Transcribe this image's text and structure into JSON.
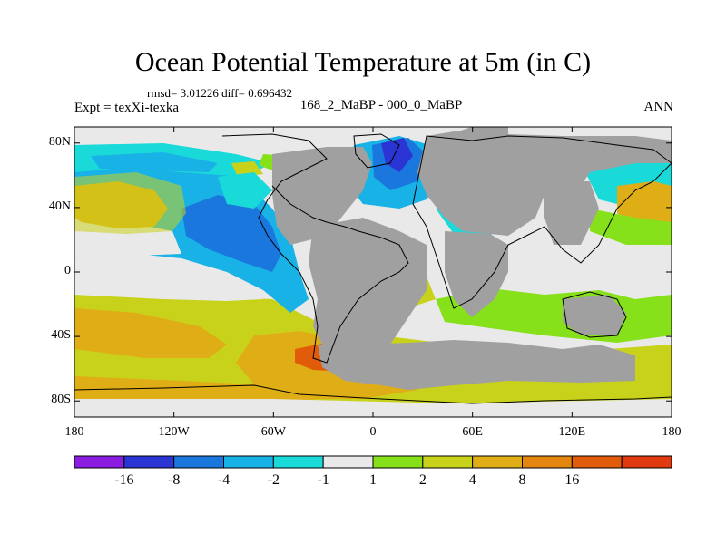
{
  "title": "Ocean Potential Temperature at 5m (in C)",
  "stats": "rmsd= 3.01226 diff= 0.696432",
  "experiment": "Expt = texXi-texka",
  "comparison": "168_2_MaBP - 000_0_MaBP",
  "season": "ANN",
  "lat_ticks": [
    {
      "value": 80,
      "label": "80N"
    },
    {
      "value": 40,
      "label": "40N"
    },
    {
      "value": 0,
      "label": "0"
    },
    {
      "value": -40,
      "label": "40S"
    },
    {
      "value": -80,
      "label": "80S"
    }
  ],
  "lon_ticks": [
    {
      "value": -180,
      "label": "180"
    },
    {
      "value": -120,
      "label": "120W"
    },
    {
      "value": -60,
      "label": "60W"
    },
    {
      "value": 0,
      "label": "0"
    },
    {
      "value": 60,
      "label": "60E"
    },
    {
      "value": 120,
      "label": "120E"
    },
    {
      "value": 180,
      "label": "180"
    }
  ],
  "colorbar": {
    "colors": [
      "#8a1de0",
      "#2a35d4",
      "#1977dd",
      "#19b2e6",
      "#1ad9d9",
      "#e9e9e9",
      "#86e01a",
      "#c8d21a",
      "#dfae16",
      "#e3860f",
      "#e05c0a",
      "#df3a10"
    ],
    "labels": [
      "-16",
      "-8",
      "-4",
      "-2",
      "-1",
      "1",
      "2",
      "4",
      "8",
      "16"
    ]
  },
  "colors": {
    "land": "#a0a0a0",
    "near_zero": "#e9e9e9"
  }
}
